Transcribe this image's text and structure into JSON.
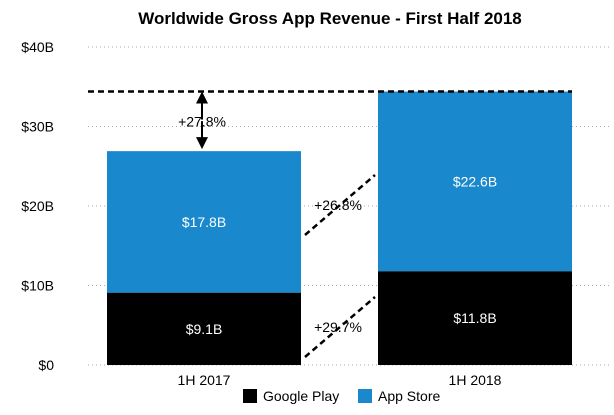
{
  "chart_data": {
    "type": "bar",
    "stacked": true,
    "title": "Worldwide Gross App Revenue - First Half 2018",
    "categories": [
      "1H 2017",
      "1H 2018"
    ],
    "series": [
      {
        "name": "Google Play",
        "values": [
          9.1,
          11.8
        ],
        "labels": [
          "$9.1B",
          "$11.8B"
        ],
        "color": "#000000",
        "label_color": "#ffffff"
      },
      {
        "name": "App Store",
        "values": [
          17.8,
          22.6
        ],
        "labels": [
          "$17.8B",
          "$22.6B"
        ],
        "color": "#1a88cc",
        "label_color": "#ffffff"
      }
    ],
    "ylim": [
      0,
      40
    ],
    "yticks": [
      0,
      10,
      20,
      30,
      40
    ],
    "ytick_labels": [
      "$0",
      "$10B",
      "$20B",
      "$30B",
      "$40B"
    ],
    "grid": "dotted horizontal",
    "legend_position": "bottom",
    "annotations": {
      "total_growth": "+27.8%",
      "app_store_growth": "+26.8%",
      "google_play_growth": "+29.7%"
    }
  }
}
